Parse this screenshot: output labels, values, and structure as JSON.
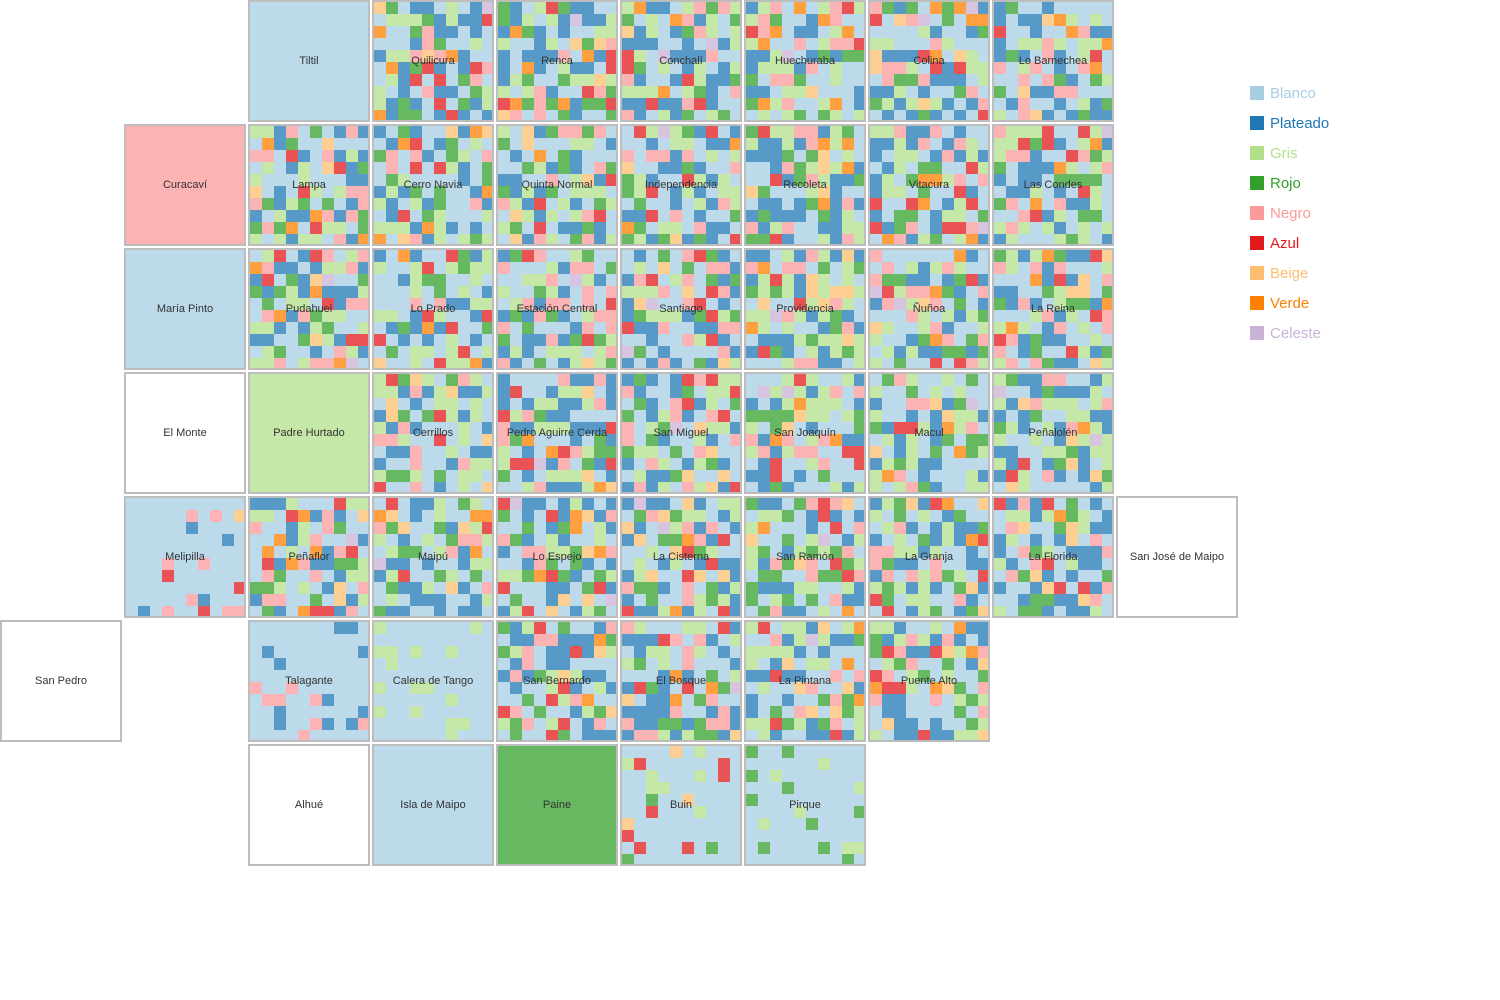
{
  "chart_data": {
    "type": "heatmap",
    "title": "",
    "legend_placement": "top-right",
    "legend": [
      {
        "label": "Blanco",
        "color": "#a6cee3"
      },
      {
        "label": "Plateado",
        "color": "#1f78b4"
      },
      {
        "label": "Gris",
        "color": "#b2df8a"
      },
      {
        "label": "Rojo",
        "color": "#33a02c"
      },
      {
        "label": "Negro",
        "color": "#fb9a99"
      },
      {
        "label": "Azul",
        "color": "#e31a1c"
      },
      {
        "label": "Beige",
        "color": "#fdbf6f"
      },
      {
        "label": "Verde",
        "color": "#ff7f00"
      },
      {
        "label": "Celeste",
        "color": "#cab2d6"
      }
    ],
    "communes": [
      {
        "name": "Tiltil",
        "row": 0,
        "col": 2,
        "pattern": "solid",
        "base": "Blanco"
      },
      {
        "name": "Quilicura",
        "row": 0,
        "col": 3,
        "pattern": "mixed"
      },
      {
        "name": "Renca",
        "row": 0,
        "col": 4,
        "pattern": "mixed"
      },
      {
        "name": "Conchalí",
        "row": 0,
        "col": 5,
        "pattern": "mixed"
      },
      {
        "name": "Huechuraba",
        "row": 0,
        "col": 6,
        "pattern": "mixed"
      },
      {
        "name": "Colina",
        "row": 0,
        "col": 7,
        "pattern": "mixed"
      },
      {
        "name": "Lo Barnechea",
        "row": 0,
        "col": 8,
        "pattern": "mixed"
      },
      {
        "name": "Curacaví",
        "row": 1,
        "col": 1,
        "pattern": "solid",
        "base": "Negro"
      },
      {
        "name": "Lampa",
        "row": 1,
        "col": 2,
        "pattern": "mixed"
      },
      {
        "name": "Cerro Navia",
        "row": 1,
        "col": 3,
        "pattern": "mixed"
      },
      {
        "name": "Quinta Normal",
        "row": 1,
        "col": 4,
        "pattern": "mixed"
      },
      {
        "name": "Independencia",
        "row": 1,
        "col": 5,
        "pattern": "mixed"
      },
      {
        "name": "Recoleta",
        "row": 1,
        "col": 6,
        "pattern": "mixed"
      },
      {
        "name": "Vitacura",
        "row": 1,
        "col": 7,
        "pattern": "mixed"
      },
      {
        "name": "Las Condes",
        "row": 1,
        "col": 8,
        "pattern": "mixed"
      },
      {
        "name": "María Pinto",
        "row": 2,
        "col": 1,
        "pattern": "solid",
        "base": "Blanco"
      },
      {
        "name": "Pudahuel",
        "row": 2,
        "col": 2,
        "pattern": "mixed"
      },
      {
        "name": "Lo Prado",
        "row": 2,
        "col": 3,
        "pattern": "mixed"
      },
      {
        "name": "Estación Central",
        "row": 2,
        "col": 4,
        "pattern": "mixed"
      },
      {
        "name": "Santiago",
        "row": 2,
        "col": 5,
        "pattern": "mixed"
      },
      {
        "name": "Providencia",
        "row": 2,
        "col": 6,
        "pattern": "mixed"
      },
      {
        "name": "Ñuñoa",
        "row": 2,
        "col": 7,
        "pattern": "mixed"
      },
      {
        "name": "La Reina",
        "row": 2,
        "col": 8,
        "pattern": "mixed"
      },
      {
        "name": "El Monte",
        "row": 3,
        "col": 1,
        "pattern": "empty"
      },
      {
        "name": "Padre Hurtado",
        "row": 3,
        "col": 2,
        "pattern": "solid",
        "base": "Gris"
      },
      {
        "name": "Cerrillos",
        "row": 3,
        "col": 3,
        "pattern": "mixed"
      },
      {
        "name": "Pedro Aguirre Cerda",
        "row": 3,
        "col": 4,
        "pattern": "mixed"
      },
      {
        "name": "San Miguel",
        "row": 3,
        "col": 5,
        "pattern": "mixed"
      },
      {
        "name": "San Joaquín",
        "row": 3,
        "col": 6,
        "pattern": "mixed"
      },
      {
        "name": "Macul",
        "row": 3,
        "col": 7,
        "pattern": "mixed"
      },
      {
        "name": "Peñalolén",
        "row": 3,
        "col": 8,
        "pattern": "mixed"
      },
      {
        "name": "Melipilla",
        "row": 4,
        "col": 1,
        "pattern": "sparse",
        "base": "Blanco",
        "accent": [
          "Azul",
          "Negro",
          "Beige",
          "Plateado"
        ]
      },
      {
        "name": "Peñaflor",
        "row": 4,
        "col": 2,
        "pattern": "mixed"
      },
      {
        "name": "Maipú",
        "row": 4,
        "col": 3,
        "pattern": "mixed"
      },
      {
        "name": "Lo Espejo",
        "row": 4,
        "col": 4,
        "pattern": "mixed"
      },
      {
        "name": "La Cisterna",
        "row": 4,
        "col": 5,
        "pattern": "mixed"
      },
      {
        "name": "San Ramón",
        "row": 4,
        "col": 6,
        "pattern": "mixed"
      },
      {
        "name": "La Granja",
        "row": 4,
        "col": 7,
        "pattern": "mixed"
      },
      {
        "name": "La Florida",
        "row": 4,
        "col": 8,
        "pattern": "mixed"
      },
      {
        "name": "San José de Maipo",
        "row": 4,
        "col": 9,
        "pattern": "empty"
      },
      {
        "name": "San Pedro",
        "row": 5,
        "col": 0,
        "pattern": "empty"
      },
      {
        "name": "Talagante",
        "row": 5,
        "col": 2,
        "pattern": "sparse",
        "base": "Blanco",
        "accent": [
          "Negro",
          "Plateado"
        ]
      },
      {
        "name": "Calera de Tango",
        "row": 5,
        "col": 3,
        "pattern": "sparse",
        "base": "Blanco",
        "accent": [
          "Gris"
        ]
      },
      {
        "name": "San Bernardo",
        "row": 5,
        "col": 4,
        "pattern": "mixed"
      },
      {
        "name": "El Bosque",
        "row": 5,
        "col": 5,
        "pattern": "mixed"
      },
      {
        "name": "La Pintana",
        "row": 5,
        "col": 6,
        "pattern": "mixed"
      },
      {
        "name": "Puente Alto",
        "row": 5,
        "col": 7,
        "pattern": "mixed"
      },
      {
        "name": "Alhué",
        "row": 6,
        "col": 2,
        "pattern": "empty"
      },
      {
        "name": "Isla de Maipo",
        "row": 6,
        "col": 3,
        "pattern": "solid",
        "base": "Blanco"
      },
      {
        "name": "Paine",
        "row": 6,
        "col": 4,
        "pattern": "solid",
        "base": "Rojo"
      },
      {
        "name": "Buin",
        "row": 6,
        "col": 5,
        "pattern": "sparse",
        "base": "Blanco",
        "accent": [
          "Rojo",
          "Beige",
          "Gris",
          "Azul"
        ]
      },
      {
        "name": "Pirque",
        "row": 6,
        "col": 6,
        "pattern": "sparse",
        "base": "Blanco",
        "accent": [
          "Gris",
          "Rojo"
        ]
      }
    ]
  }
}
